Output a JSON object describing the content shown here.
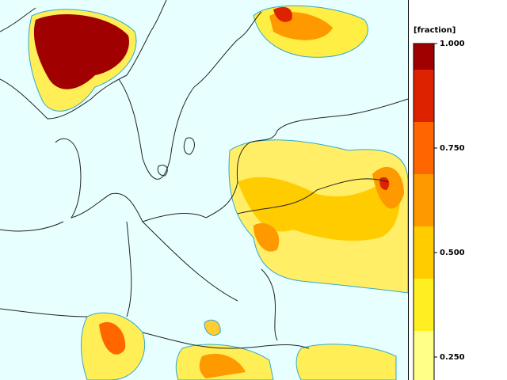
{
  "colorbar": {
    "title": "[fraction]",
    "lim": [
      0.1875,
      1.0
    ],
    "bins": [
      0.1875,
      0.3125,
      0.4375,
      0.5625,
      0.6875,
      0.8125,
      0.9375,
      1.0
    ],
    "colors": [
      "#ffff88",
      "#ffee22",
      "#ffcc00",
      "#ff9900",
      "#ff6600",
      "#dd2200",
      "#a00000"
    ],
    "ticks": [
      {
        "value": 1.0,
        "label": "1.000"
      },
      {
        "value": 0.75,
        "label": "0.750"
      },
      {
        "value": 0.5,
        "label": "0.500"
      },
      {
        "value": 0.25,
        "label": "0.250"
      }
    ]
  }
}
